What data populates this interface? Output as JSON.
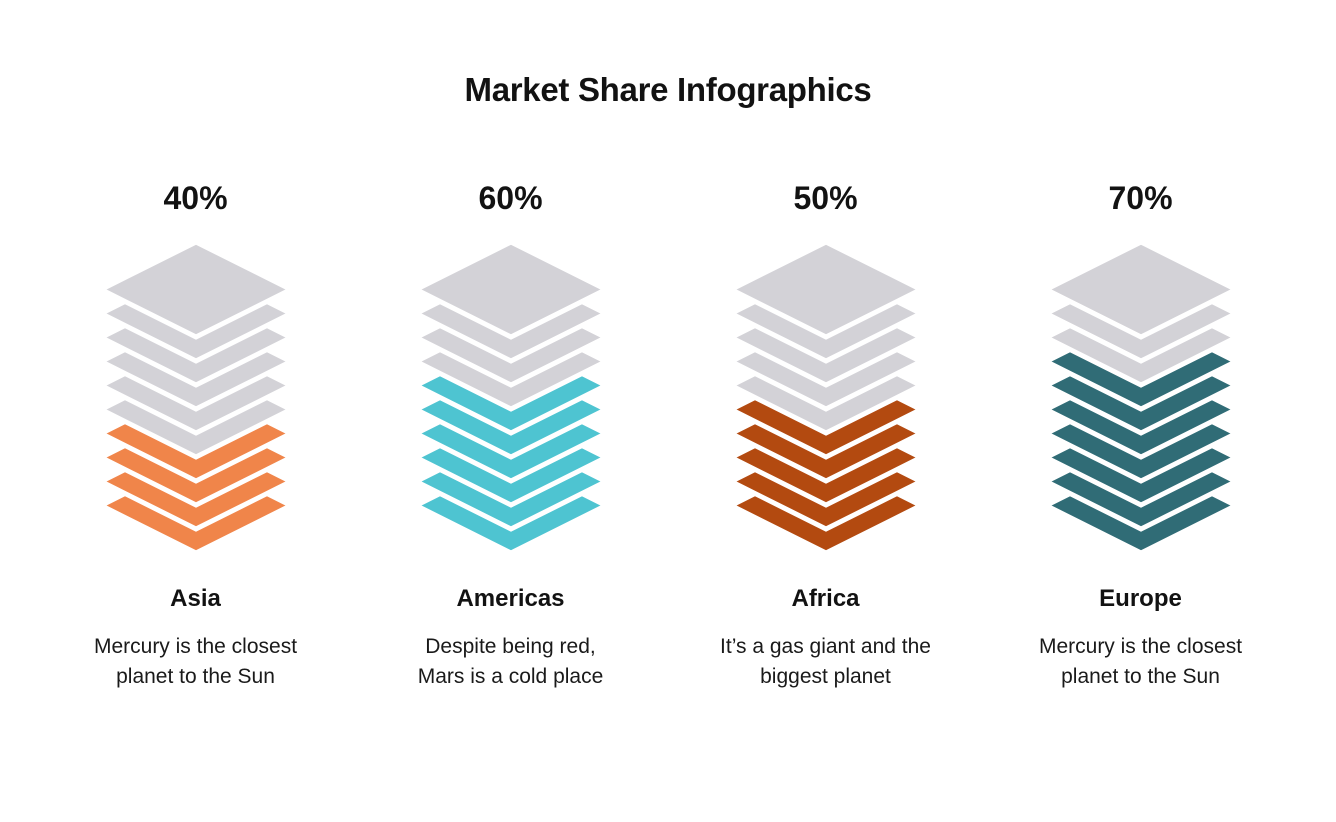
{
  "title": "Market Share Infographics",
  "chart_data": {
    "type": "bar",
    "variant": "stacked-layer-infographic",
    "title": "Market Share Infographics",
    "categories": [
      "Asia",
      "Americas",
      "Africa",
      "Europe"
    ],
    "values": [
      40,
      60,
      50,
      70
    ],
    "value_labels": [
      "40%",
      "60%",
      "50%",
      "70%"
    ],
    "descriptions": [
      "Mercury is the closest\nplanet to the Sun",
      "Despite being red,\nMars is a cold place",
      "It’s a gas giant and the\nbiggest planet",
      "Mercury is the closest\nplanet to the Sun"
    ],
    "series_colors": [
      "#F0854A",
      "#4EC4D1",
      "#B34A10",
      "#306C76"
    ],
    "inactive_color": "#D3D2D7",
    "background": "#FFFFFF",
    "text_color": "#121212",
    "total_layers_per_stack": 10,
    "colored_layers": [
      4,
      6,
      5,
      7
    ],
    "ylim": [
      0,
      100
    ],
    "legend": false,
    "grid": false
  }
}
